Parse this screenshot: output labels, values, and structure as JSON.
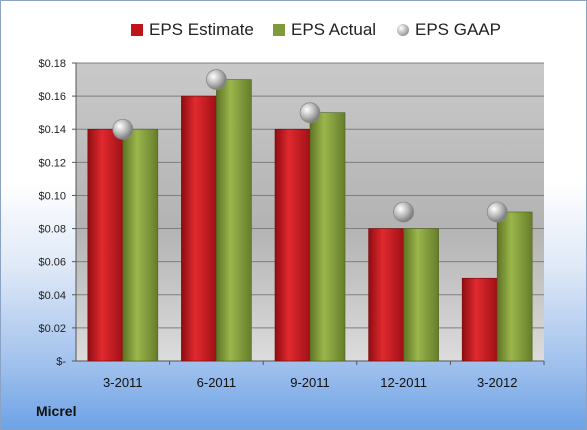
{
  "chart_data": {
    "type": "bar",
    "categories": [
      "3-2011",
      "6-2011",
      "9-2011",
      "12-2011",
      "3-2012"
    ],
    "series": [
      {
        "name": "EPS Estimate",
        "values": [
          0.14,
          0.16,
          0.14,
          0.08,
          0.05
        ],
        "color": "#c0141b",
        "mark": "bar"
      },
      {
        "name": "EPS Actual",
        "values": [
          0.14,
          0.17,
          0.15,
          0.08,
          0.09
        ],
        "color": "#7f9a38",
        "mark": "bar"
      },
      {
        "name": "EPS GAAP",
        "values": [
          0.14,
          0.17,
          0.15,
          0.09,
          0.09
        ],
        "color": "#a0a0a0",
        "mark": "point"
      }
    ],
    "y_ticks": [
      "$-",
      "$0.02",
      "$0.04",
      "$0.06",
      "$0.08",
      "$0.10",
      "$0.12",
      "$0.14",
      "$0.16",
      "$0.18"
    ],
    "ylim": [
      0,
      0.18
    ],
    "grid": true,
    "legend_position": "top"
  },
  "company": "Micrel"
}
